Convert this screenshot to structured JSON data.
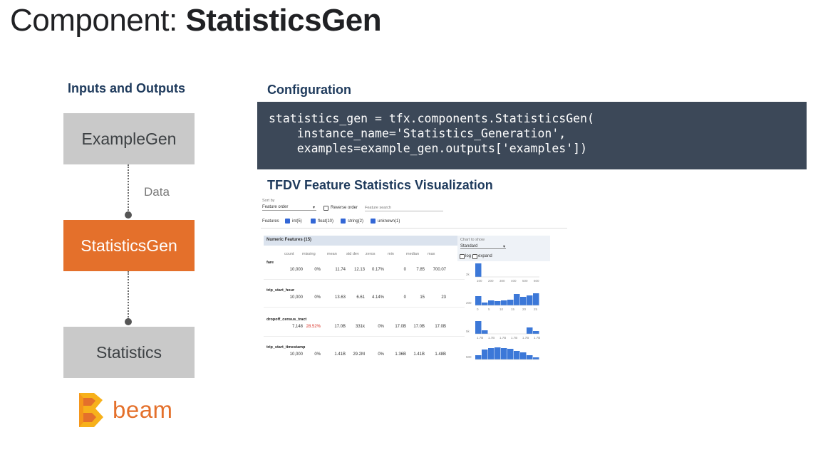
{
  "slide": {
    "title_prefix": "Component:",
    "title_name": "StatisticsGen"
  },
  "left": {
    "heading": "Inputs and Outputs",
    "boxes": [
      "ExampleGen",
      "StatisticsGen",
      "Statistics"
    ],
    "edge_label": "Data",
    "beam_text": "beam",
    "colors": {
      "gray_box": "#c9c9c9",
      "active_box": "#e4702b"
    }
  },
  "config": {
    "heading": "Configuration",
    "code_lines": [
      "statistics_gen = tfx.components.StatisticsGen(",
      "    instance_name='Statistics_Generation',",
      "    examples=example_gen.outputs['examples'])"
    ]
  },
  "viz": {
    "heading": "TFDV Feature Statistics Visualization",
    "sort_label": "Sort by",
    "sort_value": "Feature order",
    "reverse_label": "Reverse order",
    "search_placeholder": "Feature search",
    "features_label": "Features",
    "filters": [
      "int(5)",
      "float(10)",
      "string(2)",
      "unknown(1)"
    ],
    "section_title": "Numeric Features (15)",
    "chart_label": "Chart to show",
    "chart_value": "Standard",
    "log_label": "log",
    "expand_label": "expand",
    "columns": [
      "count",
      "missing",
      "mean",
      "std dev",
      "zeros",
      "min",
      "median",
      "max"
    ],
    "rows": [
      {
        "name": "fare",
        "values": [
          "10,000",
          "0%",
          "11.74",
          "12.13",
          "0.17%",
          "0",
          "7.85",
          "700.07"
        ]
      },
      {
        "name": "trip_start_hour",
        "values": [
          "10,000",
          "0%",
          "13.63",
          "6.61",
          "4.14%",
          "0",
          "15",
          "23"
        ]
      },
      {
        "name": "dropoff_census_tract",
        "values": [
          "7,148",
          "28.52%",
          "17.0B",
          "331k",
          "0%",
          "17.0B",
          "17.0B",
          "17.0B"
        ]
      },
      {
        "name": "trip_start_timestamp",
        "values": [
          "10,000",
          "0%",
          "1.41B",
          "29.2M",
          "0%",
          "1.36B",
          "1.41B",
          "1.48B"
        ]
      }
    ],
    "row_axis_labels": [
      [
        "100",
        "200",
        "300",
        "400",
        "500",
        "600"
      ],
      [
        "0",
        "5",
        "10",
        "15",
        "20",
        "25"
      ],
      [
        "1.7B",
        "1.7B",
        "1.7B",
        "1.7B",
        "1.7B",
        "1.7B"
      ]
    ],
    "histograms": [
      [
        0.95,
        0,
        0,
        0,
        0,
        0,
        0,
        0,
        0,
        0
      ],
      [
        0.65,
        0.2,
        0.35,
        0.3,
        0.35,
        0.4,
        0.8,
        0.6,
        0.7,
        0.85
      ],
      [
        0.9,
        0.25,
        0,
        0,
        0,
        0,
        0,
        0,
        0.45,
        0.2
      ],
      [
        0.3,
        0.7,
        0.8,
        0.85,
        0.8,
        0.75,
        0.6,
        0.5,
        0.3,
        0.15
      ]
    ],
    "hist_ylabels": [
      "2k",
      "200",
      "5k",
      "500"
    ]
  }
}
